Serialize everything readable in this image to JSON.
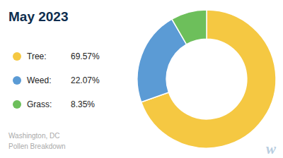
{
  "chart_data": {
    "type": "pie",
    "title": "May 2023",
    "subtitle": "Washington, DC\nPollen Breakdown",
    "categories": [
      "Tree:",
      "Weed:",
      "Grass:"
    ],
    "values": [
      69.57,
      22.07,
      8.35
    ],
    "value_labels": [
      "69.57%",
      "22.07%",
      "8.35%"
    ],
    "colors": [
      "#F5C842",
      "#5B9BD5",
      "#6DBF5B"
    ],
    "annotations": [
      "w"
    ]
  }
}
